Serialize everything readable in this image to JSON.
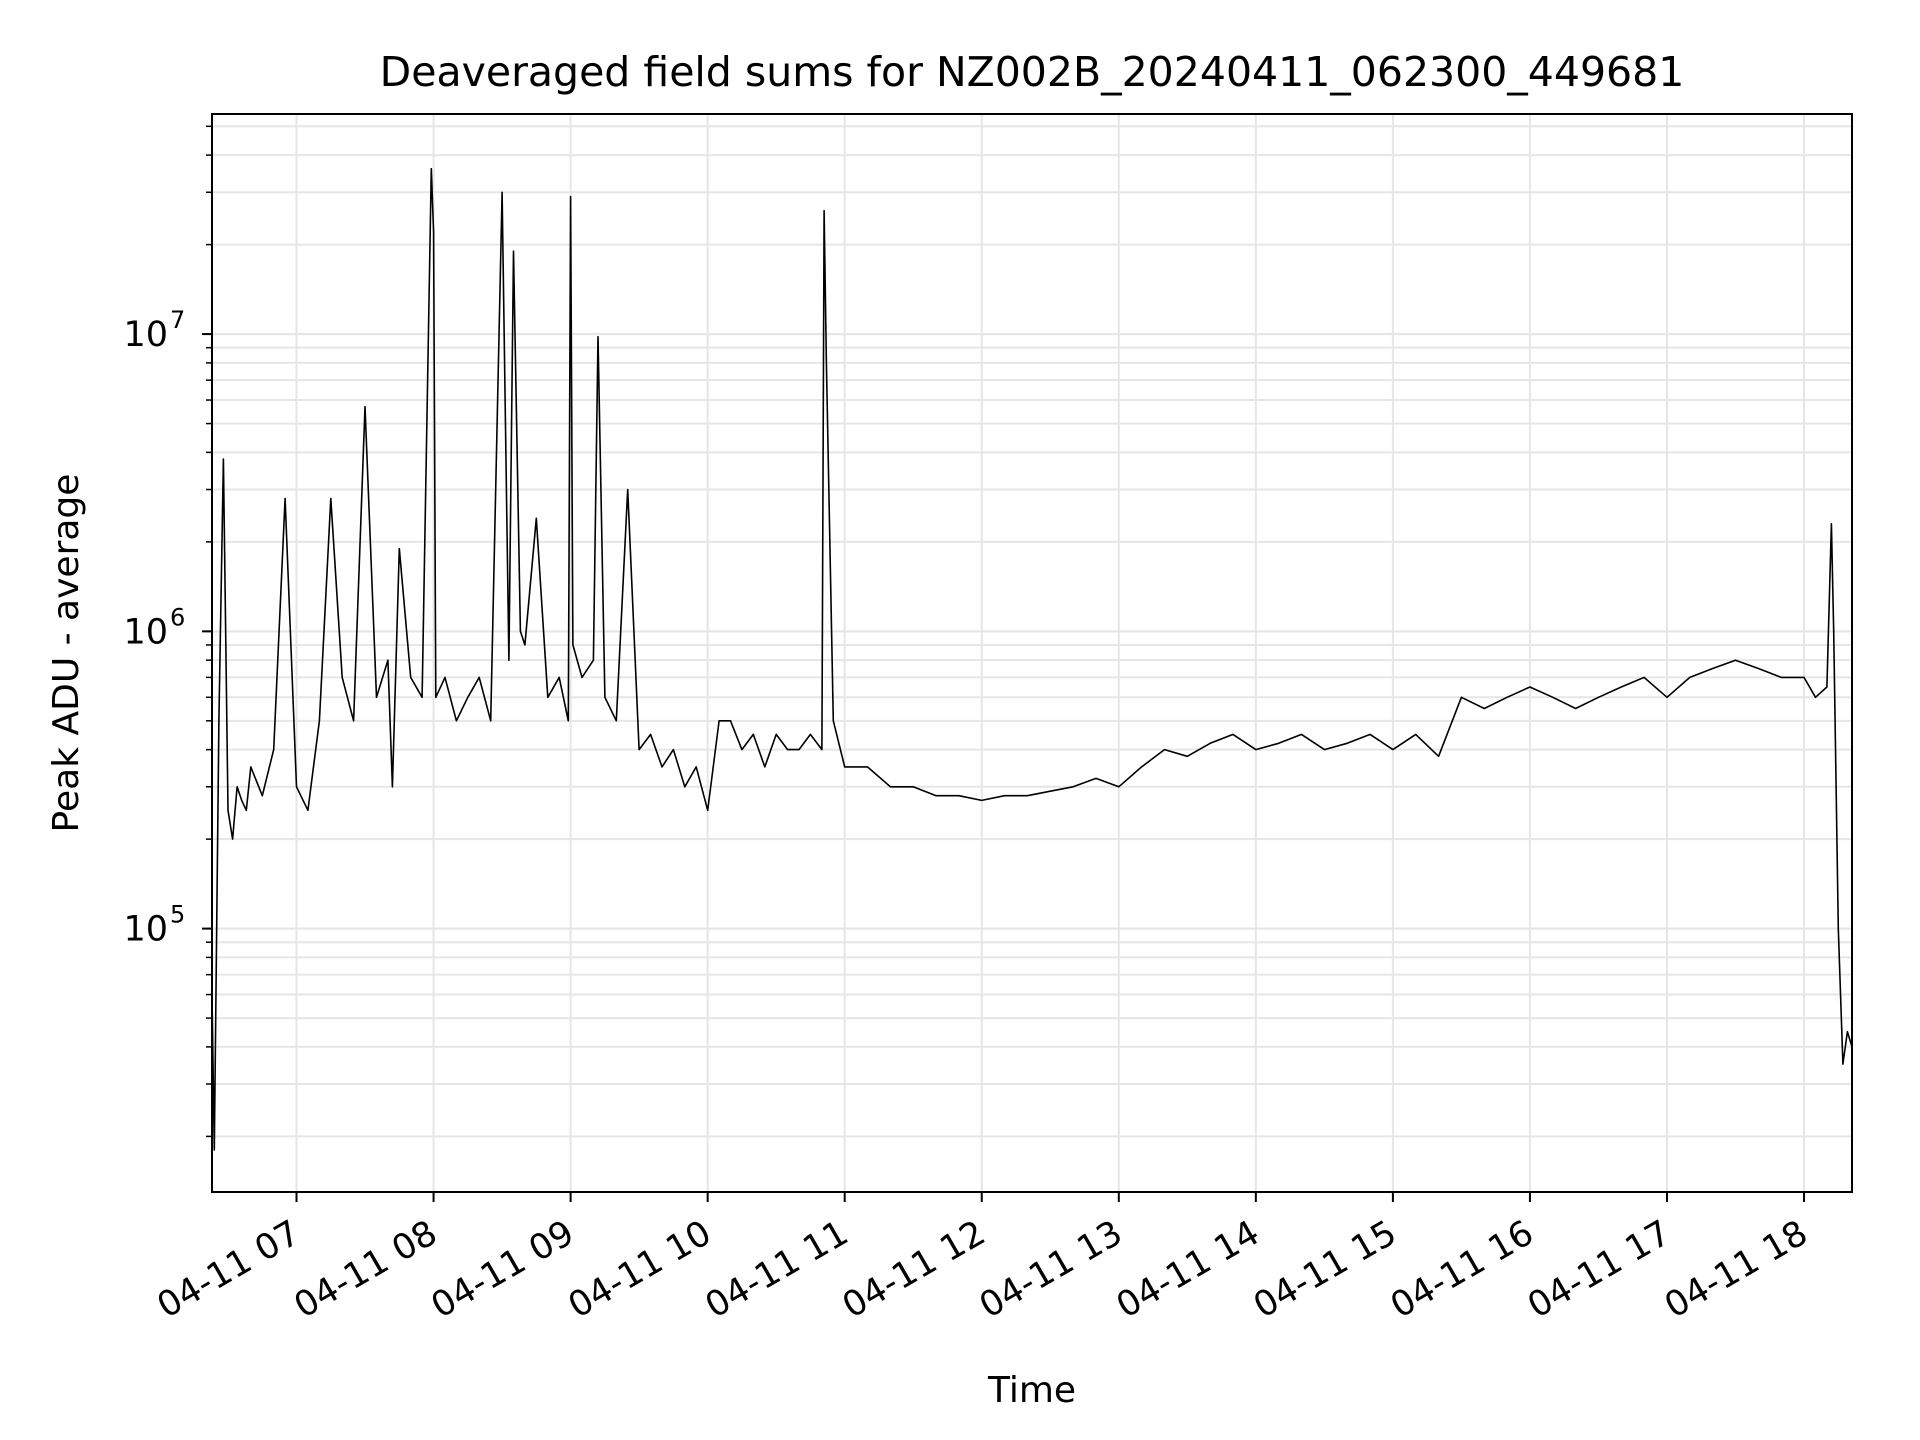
{
  "chart_data": {
    "type": "line",
    "title": "Deaveraged field sums for NZ002B_20240411_062300_449681",
    "xlabel": "Time",
    "ylabel": "Peak ADU - average",
    "x_range": [
      "2024-04-11 06:23",
      "2024-04-11 18:21"
    ],
    "x_ticks": [
      "04-11 07",
      "04-11 08",
      "04-11 09",
      "04-11 10",
      "04-11 11",
      "04-11 12",
      "04-11 13",
      "04-11 14",
      "04-11 15",
      "04-11 16",
      "04-11 17",
      "04-11 18"
    ],
    "yscale": "log",
    "ylim": [
      13000,
      55000000
    ],
    "y_ticks": [
      {
        "base": "10",
        "exp": "5",
        "value": 100000
      },
      {
        "base": "10",
        "exp": "6",
        "value": 1000000
      },
      {
        "base": "10",
        "exp": "7",
        "value": 10000000
      }
    ],
    "grid": true,
    "line_color": "#000000",
    "grid_color": "#e6e6e6",
    "series": [
      {
        "x": [
          "06:23",
          "06:24",
          "06:26",
          "06:28",
          "06:30",
          "06:32",
          "06:34",
          "06:36",
          "06:38",
          "06:40",
          "06:45",
          "06:50",
          "06:55",
          "07:00",
          "07:05",
          "07:10",
          "07:15",
          "07:20",
          "07:25",
          "07:30",
          "07:35",
          "07:40",
          "07:42",
          "07:45",
          "07:50",
          "07:55",
          "07:59",
          "08:00",
          "08:01",
          "08:05",
          "08:10",
          "08:15",
          "08:20",
          "08:25",
          "08:30",
          "08:33",
          "08:35",
          "08:38",
          "08:40",
          "08:45",
          "08:50",
          "08:55",
          "08:59",
          "09:00",
          "09:01",
          "09:05",
          "09:10",
          "09:12",
          "09:15",
          "09:20",
          "09:25",
          "09:30",
          "09:35",
          "09:40",
          "09:45",
          "09:50",
          "09:55",
          "10:00",
          "10:05",
          "10:10",
          "10:15",
          "10:20",
          "10:25",
          "10:30",
          "10:35",
          "10:40",
          "10:45",
          "10:50",
          "10:51",
          "10:52",
          "10:55",
          "11:00",
          "11:10",
          "11:20",
          "11:30",
          "11:40",
          "11:50",
          "12:00",
          "12:10",
          "12:20",
          "12:30",
          "12:40",
          "12:50",
          "13:00",
          "13:10",
          "13:20",
          "13:30",
          "13:40",
          "13:50",
          "14:00",
          "14:10",
          "14:20",
          "14:30",
          "14:40",
          "14:50",
          "15:00",
          "15:10",
          "15:20",
          "15:30",
          "15:40",
          "15:50",
          "16:00",
          "16:10",
          "16:20",
          "16:30",
          "16:40",
          "16:50",
          "17:00",
          "17:10",
          "17:20",
          "17:30",
          "17:40",
          "17:50",
          "18:00",
          "18:05",
          "18:10",
          "18:12",
          "18:13",
          "18:15",
          "18:17",
          "18:19",
          "18:21"
        ],
        "y": [
          60000,
          18000,
          500000,
          3800000,
          250000,
          200000,
          300000,
          270000,
          250000,
          350000,
          280000,
          400000,
          2800000,
          300000,
          250000,
          500000,
          2800000,
          700000,
          500000,
          5700000,
          600000,
          800000,
          300000,
          1900000,
          700000,
          600000,
          36000000,
          22000000,
          600000,
          700000,
          500000,
          600000,
          700000,
          500000,
          30000000,
          800000,
          19000000,
          1000000,
          900000,
          2400000,
          600000,
          700000,
          500000,
          29000000,
          900000,
          700000,
          800000,
          9800000,
          600000,
          500000,
          3000000,
          400000,
          450000,
          350000,
          400000,
          300000,
          350000,
          250000,
          500000,
          500000,
          400000,
          450000,
          350000,
          450000,
          400000,
          400000,
          450000,
          400000,
          26000000,
          8000000,
          500000,
          350000,
          350000,
          300000,
          300000,
          280000,
          280000,
          270000,
          280000,
          280000,
          290000,
          300000,
          320000,
          300000,
          350000,
          400000,
          380000,
          420000,
          450000,
          400000,
          420000,
          450000,
          400000,
          420000,
          450000,
          400000,
          450000,
          380000,
          600000,
          550000,
          600000,
          650000,
          600000,
          550000,
          600000,
          650000,
          700000,
          600000,
          700000,
          750000,
          800000,
          750000,
          700000,
          700000,
          600000,
          650000,
          2300000,
          1000000,
          100000,
          35000,
          45000,
          40000
        ]
      }
    ]
  }
}
